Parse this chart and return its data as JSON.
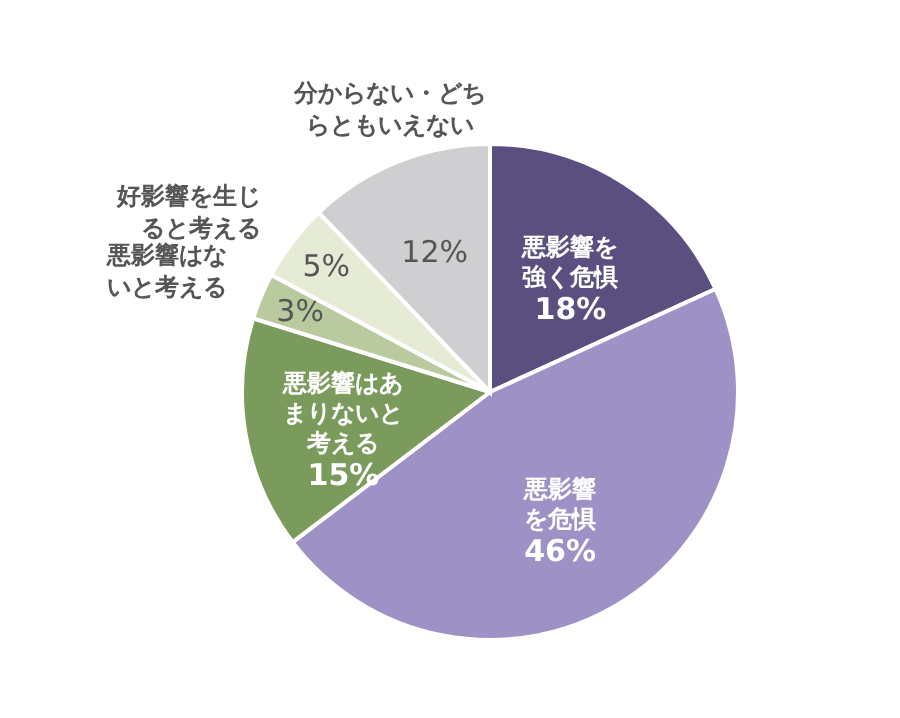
{
  "chart_data": {
    "type": "pie",
    "categories": [
      "悪影響を強く危惧",
      "悪影響を危惧",
      "悪影響はあまりないと考える",
      "悪影響はないと考える",
      "好影響を生じると考える",
      "分からない・どちらともいえない"
    ],
    "values": [
      18,
      46,
      15,
      3,
      5,
      12
    ],
    "value_labels": [
      "18%",
      "46%",
      "15%",
      "3%",
      "5%",
      "12%"
    ],
    "colors": [
      "#5b4f80",
      "#9d91c6",
      "#7b9b5c",
      "#b9cb9e",
      "#e6ebd6",
      "#cfcfd1"
    ]
  }
}
